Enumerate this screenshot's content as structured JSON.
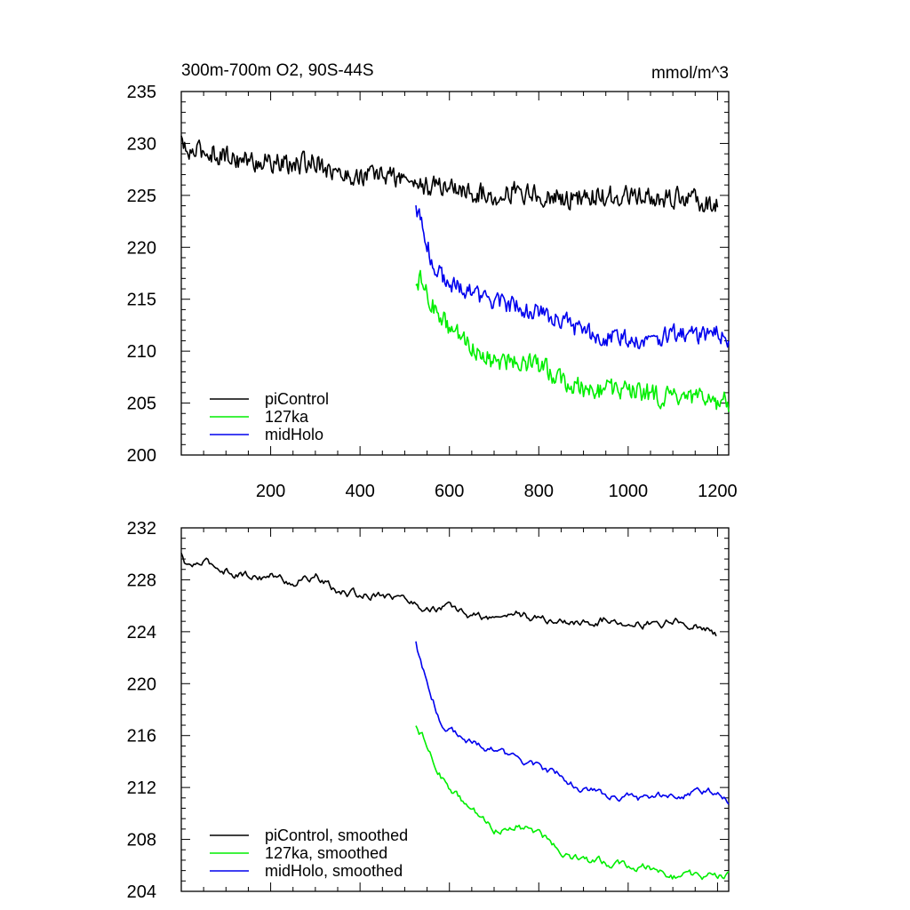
{
  "chart_data": [
    {
      "type": "line",
      "title_left": "300m-700m O2, 90S-44S",
      "title_right": "mmol/m^3",
      "xlabel": "",
      "ylabel": "",
      "xlim": [
        0,
        1225
      ],
      "ylim": [
        200,
        235
      ],
      "x_ticks": [
        200,
        400,
        600,
        800,
        1000,
        1200
      ],
      "y_ticks": [
        200,
        205,
        210,
        215,
        220,
        225,
        230,
        235
      ],
      "x_tick_labels_visible": true,
      "legend_position": "bottom-left",
      "series": [
        {
          "name": "piControl",
          "color": "#000000",
          "noise": 0.9,
          "x": [
            0,
            10,
            50,
            100,
            150,
            200,
            250,
            300,
            350,
            400,
            450,
            500,
            550,
            600,
            650,
            700,
            750,
            800,
            850,
            900,
            950,
            1000,
            1050,
            1100,
            1150,
            1200
          ],
          "y": [
            230.5,
            229.0,
            229.3,
            228.8,
            228.3,
            228.2,
            227.8,
            228.4,
            227.0,
            226.8,
            227.0,
            226.6,
            225.8,
            225.9,
            225.2,
            225.0,
            225.5,
            224.9,
            224.8,
            224.7,
            224.9,
            224.9,
            224.6,
            224.8,
            224.6,
            224.0
          ]
        },
        {
          "name": "127ka",
          "color": "#00ee00",
          "noise": 0.9,
          "x": [
            525,
            540,
            560,
            580,
            600,
            650,
            700,
            750,
            800,
            850,
            900,
            950,
            1000,
            1050,
            1100,
            1150,
            1200,
            1225
          ],
          "y": [
            217.2,
            216.5,
            214.5,
            213.3,
            212.2,
            210.5,
            208.9,
            209.2,
            208.6,
            207.4,
            206.3,
            206.3,
            206.2,
            205.9,
            205.4,
            205.3,
            205.2,
            205.0
          ]
        },
        {
          "name": "midHolo",
          "color": "#0000ee",
          "noise": 0.8,
          "x": [
            525,
            540,
            560,
            580,
            600,
            650,
            700,
            750,
            800,
            850,
            900,
            950,
            1000,
            1050,
            1100,
            1150,
            1200,
            1225
          ],
          "y": [
            224.2,
            221.6,
            219.0,
            217.3,
            216.6,
            215.5,
            214.8,
            214.3,
            213.6,
            213.0,
            211.8,
            211.4,
            211.2,
            211.0,
            211.6,
            211.6,
            211.7,
            211.1
          ]
        }
      ]
    },
    {
      "type": "line",
      "xlabel": "",
      "ylabel": "",
      "xlim": [
        0,
        1225
      ],
      "ylim": [
        204,
        232
      ],
      "x_ticks": [
        200,
        400,
        600,
        800,
        1000,
        1200
      ],
      "y_ticks": [
        204,
        208,
        212,
        216,
        220,
        224,
        228,
        232
      ],
      "x_tick_labels_visible": false,
      "legend_position": "bottom-left",
      "series": [
        {
          "name": "piControl, smoothed",
          "color": "#000000",
          "noise": 0.45,
          "x": [
            0,
            10,
            50,
            100,
            150,
            200,
            250,
            300,
            350,
            400,
            450,
            500,
            550,
            600,
            650,
            700,
            750,
            800,
            850,
            900,
            950,
            1000,
            1050,
            1100,
            1150,
            1200
          ],
          "y": [
            230.0,
            229.0,
            229.3,
            228.8,
            228.3,
            228.3,
            227.8,
            228.3,
            227.0,
            226.8,
            227.0,
            226.5,
            225.8,
            225.8,
            225.2,
            225.0,
            225.5,
            224.9,
            224.8,
            224.7,
            224.9,
            224.9,
            224.6,
            224.8,
            224.6,
            223.8
          ]
        },
        {
          "name": "127ka, smoothed",
          "color": "#00ee00",
          "noise": 0.45,
          "x": [
            525,
            540,
            560,
            580,
            600,
            650,
            700,
            750,
            800,
            850,
            900,
            950,
            1000,
            1050,
            1100,
            1150,
            1200,
            1225
          ],
          "y": [
            217.0,
            216.0,
            214.3,
            213.0,
            212.0,
            210.2,
            208.8,
            209.1,
            208.5,
            207.2,
            206.3,
            206.2,
            206.1,
            205.8,
            205.2,
            205.1,
            205.1,
            205.2
          ]
        },
        {
          "name": "midHolo, smoothed",
          "color": "#0000ee",
          "noise": 0.4,
          "x": [
            525,
            540,
            560,
            580,
            600,
            650,
            700,
            750,
            800,
            850,
            900,
            950,
            1000,
            1050,
            1100,
            1150,
            1200,
            1225
          ],
          "y": [
            223.3,
            221.0,
            219.0,
            217.3,
            216.5,
            215.5,
            214.8,
            214.2,
            213.5,
            212.9,
            211.8,
            211.4,
            211.2,
            211.0,
            211.6,
            211.6,
            211.7,
            211.1
          ]
        }
      ]
    }
  ]
}
